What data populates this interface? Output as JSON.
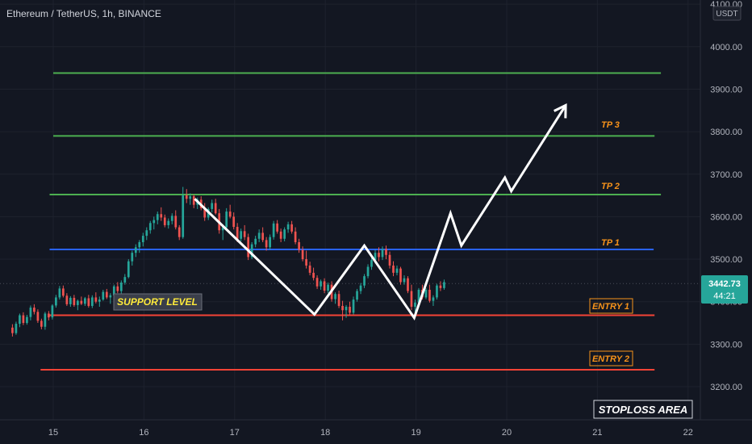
{
  "header": {
    "title": "Ethereum / TetherUS, 1h, BINANCE"
  },
  "price_axis": {
    "currency": "USDT"
  },
  "last_price": {
    "value": "3442.73",
    "countdown": "44:21",
    "color": "#26a69a"
  },
  "colors": {
    "up": "#26a69a",
    "down": "#ef5350",
    "tp": "#4caf50",
    "entry": "#f44336",
    "pivot": "#2962ff",
    "label_orange": "#f7931a",
    "support_text": "#ffeb3b"
  },
  "annotations": {
    "support_level": "SUPPORT LEVEL",
    "stoploss_area": "STOPLOSS AREA",
    "tp1": "TP 1",
    "tp2": "TP 2",
    "tp3": "TP 3",
    "entry1": "ENTRY 1",
    "entry2": "ENTRY 2"
  },
  "chart_data": {
    "type": "candlestick",
    "title": "Ethereum / TetherUS, 1h, BINANCE",
    "ylim": [
      3155,
      4105
    ],
    "xlim": [
      14.55,
      22.1
    ],
    "y_ticks": [
      "3200.00",
      "3300.00",
      "3400.00",
      "3500.00",
      "3600.00",
      "3700.00",
      "3800.00",
      "3900.00",
      "4000.00",
      "4100.00"
    ],
    "x_ticks": [
      "15",
      "16",
      "17",
      "18",
      "19",
      "20",
      "21",
      "22"
    ],
    "levels": [
      {
        "name": "target-line",
        "price": 3938,
        "x_start": 15.0,
        "x_end": 21.7,
        "color": "#4caf50"
      },
      {
        "name": "tp3",
        "price": 3790,
        "x_start": 15.0,
        "x_end": 21.63,
        "color": "#4caf50"
      },
      {
        "name": "tp2",
        "price": 3652,
        "x_start": 14.96,
        "x_end": 21.7,
        "color": "#4caf50"
      },
      {
        "name": "tp1",
        "price": 3523,
        "x_start": 14.96,
        "x_end": 21.62,
        "color": "#2962ff"
      },
      {
        "name": "entry1",
        "price": 3368,
        "x_start": 14.96,
        "x_end": 21.63,
        "color": "#f44336"
      },
      {
        "name": "entry2",
        "price": 3240,
        "x_start": 14.86,
        "x_end": 21.63,
        "color": "#f44336"
      }
    ],
    "projection_path": [
      [
        16.56,
        3642
      ],
      [
        17.88,
        3370
      ],
      [
        18.43,
        3532
      ],
      [
        18.98,
        3362
      ],
      [
        19.38,
        3608
      ],
      [
        19.5,
        3532
      ],
      [
        19.98,
        3692
      ],
      [
        20.05,
        3660
      ],
      [
        20.65,
        3862
      ]
    ],
    "candles": [
      [
        3339,
        3347,
        3318,
        3326
      ],
      [
        3326,
        3353,
        3322,
        3348
      ],
      [
        3348,
        3372,
        3340,
        3368
      ],
      [
        3368,
        3375,
        3345,
        3350
      ],
      [
        3350,
        3369,
        3346,
        3364
      ],
      [
        3364,
        3391,
        3356,
        3386
      ],
      [
        3386,
        3394,
        3370,
        3376
      ],
      [
        3376,
        3382,
        3350,
        3355
      ],
      [
        3355,
        3360,
        3335,
        3341
      ],
      [
        3341,
        3376,
        3334,
        3372
      ],
      [
        3372,
        3378,
        3356,
        3363
      ],
      [
        3363,
        3394,
        3358,
        3391
      ],
      [
        3391,
        3416,
        3386,
        3410
      ],
      [
        3410,
        3437,
        3405,
        3431
      ],
      [
        3431,
        3438,
        3410,
        3414
      ],
      [
        3414,
        3420,
        3390,
        3394
      ],
      [
        3394,
        3413,
        3388,
        3409
      ],
      [
        3409,
        3416,
        3388,
        3392
      ],
      [
        3392,
        3405,
        3380,
        3402
      ],
      [
        3402,
        3412,
        3392,
        3395
      ],
      [
        3395,
        3411,
        3390,
        3408
      ],
      [
        3408,
        3416,
        3386,
        3390
      ],
      [
        3390,
        3415,
        3385,
        3410
      ],
      [
        3410,
        3422,
        3396,
        3400
      ],
      [
        3400,
        3412,
        3388,
        3405
      ],
      [
        3405,
        3428,
        3402,
        3423
      ],
      [
        3423,
        3430,
        3406,
        3410
      ],
      [
        3410,
        3420,
        3395,
        3415
      ],
      [
        3415,
        3440,
        3408,
        3436
      ],
      [
        3436,
        3446,
        3420,
        3425
      ],
      [
        3425,
        3450,
        3418,
        3445
      ],
      [
        3445,
        3465,
        3440,
        3458
      ],
      [
        3458,
        3500,
        3455,
        3495
      ],
      [
        3495,
        3520,
        3485,
        3515
      ],
      [
        3515,
        3535,
        3505,
        3528
      ],
      [
        3528,
        3545,
        3515,
        3540
      ],
      [
        3540,
        3562,
        3530,
        3555
      ],
      [
        3555,
        3575,
        3545,
        3568
      ],
      [
        3568,
        3590,
        3560,
        3585
      ],
      [
        3585,
        3600,
        3570,
        3592
      ],
      [
        3592,
        3612,
        3582,
        3606
      ],
      [
        3606,
        3622,
        3590,
        3598
      ],
      [
        3598,
        3605,
        3575,
        3580
      ],
      [
        3580,
        3596,
        3572,
        3590
      ],
      [
        3590,
        3608,
        3582,
        3602
      ],
      [
        3602,
        3615,
        3570,
        3575
      ],
      [
        3575,
        3580,
        3545,
        3552
      ],
      [
        3552,
        3670,
        3548,
        3650
      ],
      [
        3650,
        3665,
        3632,
        3642
      ],
      [
        3642,
        3655,
        3628,
        3648
      ],
      [
        3648,
        3652,
        3620,
        3628
      ],
      [
        3628,
        3645,
        3618,
        3640
      ],
      [
        3640,
        3648,
        3615,
        3620
      ],
      [
        3620,
        3632,
        3590,
        3598
      ],
      [
        3598,
        3622,
        3592,
        3618
      ],
      [
        3618,
        3640,
        3610,
        3632
      ],
      [
        3632,
        3642,
        3605,
        3608
      ],
      [
        3608,
        3618,
        3560,
        3568
      ],
      [
        3568,
        3582,
        3545,
        3575
      ],
      [
        3575,
        3620,
        3570,
        3612
      ],
      [
        3612,
        3628,
        3596,
        3600
      ],
      [
        3600,
        3610,
        3570,
        3576
      ],
      [
        3576,
        3585,
        3540,
        3548
      ],
      [
        3548,
        3572,
        3542,
        3566
      ],
      [
        3566,
        3580,
        3545,
        3552
      ],
      [
        3552,
        3560,
        3498,
        3505
      ],
      [
        3505,
        3540,
        3500,
        3535
      ],
      [
        3535,
        3555,
        3528,
        3548
      ],
      [
        3548,
        3570,
        3540,
        3562
      ],
      [
        3562,
        3575,
        3540,
        3545
      ],
      [
        3545,
        3552,
        3520,
        3528
      ],
      [
        3528,
        3558,
        3522,
        3552
      ],
      [
        3552,
        3590,
        3546,
        3584
      ],
      [
        3584,
        3592,
        3560,
        3565
      ],
      [
        3565,
        3572,
        3540,
        3548
      ],
      [
        3548,
        3575,
        3542,
        3570
      ],
      [
        3570,
        3588,
        3562,
        3582
      ],
      [
        3582,
        3590,
        3560,
        3565
      ],
      [
        3565,
        3575,
        3535,
        3540
      ],
      [
        3540,
        3548,
        3515,
        3522
      ],
      [
        3522,
        3530,
        3495,
        3500
      ],
      [
        3500,
        3520,
        3478,
        3485
      ],
      [
        3485,
        3494,
        3462,
        3468
      ],
      [
        3468,
        3480,
        3450,
        3456
      ],
      [
        3456,
        3462,
        3430,
        3436
      ],
      [
        3436,
        3452,
        3428,
        3448
      ],
      [
        3448,
        3455,
        3420,
        3426
      ],
      [
        3426,
        3445,
        3420,
        3440
      ],
      [
        3440,
        3448,
        3400,
        3406
      ],
      [
        3406,
        3422,
        3395,
        3418
      ],
      [
        3418,
        3426,
        3385,
        3390
      ],
      [
        3390,
        3402,
        3356,
        3380
      ],
      [
        3380,
        3392,
        3362,
        3388
      ],
      [
        3388,
        3400,
        3368,
        3374
      ],
      [
        3374,
        3412,
        3370,
        3405
      ],
      [
        3405,
        3430,
        3400,
        3425
      ],
      [
        3425,
        3444,
        3418,
        3438
      ],
      [
        3438,
        3465,
        3432,
        3460
      ],
      [
        3460,
        3488,
        3455,
        3482
      ],
      [
        3482,
        3505,
        3475,
        3498
      ],
      [
        3498,
        3522,
        3490,
        3515
      ],
      [
        3515,
        3528,
        3495,
        3505
      ],
      [
        3505,
        3530,
        3498,
        3524
      ],
      [
        3524,
        3532,
        3500,
        3510
      ],
      [
        3510,
        3518,
        3478,
        3485
      ],
      [
        3485,
        3495,
        3460,
        3468
      ],
      [
        3468,
        3485,
        3462,
        3478
      ],
      [
        3478,
        3482,
        3440,
        3446
      ],
      [
        3446,
        3462,
        3440,
        3455
      ],
      [
        3455,
        3460,
        3420,
        3425
      ],
      [
        3425,
        3440,
        3380,
        3388
      ],
      [
        3388,
        3405,
        3375,
        3398
      ],
      [
        3398,
        3432,
        3392,
        3428
      ],
      [
        3428,
        3440,
        3405,
        3410
      ],
      [
        3410,
        3432,
        3406,
        3428
      ],
      [
        3428,
        3440,
        3398,
        3402
      ],
      [
        3402,
        3415,
        3390,
        3410
      ],
      [
        3410,
        3442,
        3405,
        3438
      ],
      [
        3438,
        3448,
        3425,
        3432
      ],
      [
        3432,
        3452,
        3428,
        3446
      ]
    ]
  }
}
